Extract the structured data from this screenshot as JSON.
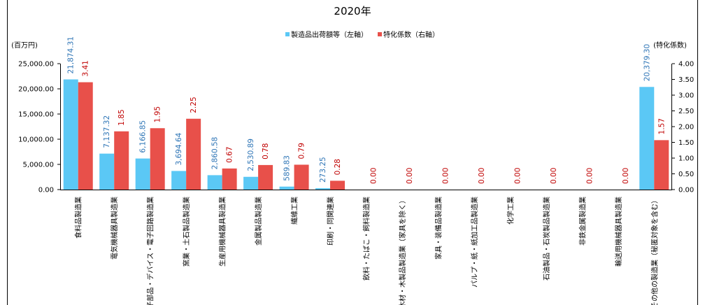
{
  "chart_data": {
    "type": "bar",
    "title": "2020年",
    "y_left_label": "(百万円)",
    "y_right_label": "(特化係数)",
    "y_left_range": [
      0,
      25000
    ],
    "y_right_range": [
      0,
      4
    ],
    "y_left_ticks": [
      "0.00",
      "5,000.00",
      "10,000.00",
      "15,000.00",
      "20,000.00",
      "25,000.00"
    ],
    "y_right_ticks": [
      "0.00",
      "0.50",
      "1.00",
      "1.50",
      "2.00",
      "2.50",
      "3.00",
      "3.50",
      "4.00"
    ],
    "legend_position": "top-center",
    "categories": [
      "食料品製造業",
      "電気機械器具製造業",
      "電子部品・デバイス・電子回路製造業",
      "窯業・土石製品製造業",
      "生産用機械器具製造業",
      "金属製品製造業",
      "繊維工業",
      "印刷・同関連業",
      "飲料・たばこ・飼料製造業",
      "木材・木製品製造業（家具を除く）",
      "家具・装備品製造業",
      "パルプ・紙・紙加工品製造業",
      "化学工業",
      "石油製品・石炭製品製造業",
      "非鉄金属製造業",
      "輸送用機械器具製造業",
      "その他の製造業（秘匿対象を含む）"
    ],
    "series": [
      {
        "name": "製造品出荷額等（左軸）",
        "axis": "left",
        "color": "#5bc8f5",
        "values": [
          21874.31,
          7137.32,
          6166.85,
          3694.64,
          2860.58,
          2530.89,
          589.83,
          273.25,
          null,
          null,
          null,
          null,
          null,
          null,
          null,
          null,
          20379.3
        ],
        "labels": [
          "21,874.31",
          "7,137.32",
          "6,166.85",
          "3,694.64",
          "2,860.58",
          "2,530.89",
          "589.83",
          "273.25",
          "",
          "",
          "",
          "",
          "",
          "",
          "",
          "",
          "20,379.30"
        ],
        "label_color": "#2e75b6"
      },
      {
        "name": "特化係数（右軸）",
        "axis": "right",
        "color": "#e8504a",
        "values": [
          3.41,
          1.85,
          1.95,
          2.25,
          0.67,
          0.78,
          0.79,
          0.28,
          0,
          0,
          0,
          0,
          0,
          0,
          0,
          0,
          1.57
        ],
        "labels": [
          "3.41",
          "1.85",
          "1.95",
          "2.25",
          "0.67",
          "0.78",
          "0.79",
          "0.28",
          "0.00",
          "0.00",
          "0.00",
          "0.00",
          "0.00",
          "0.00",
          "0.00",
          "0.00",
          "1.57"
        ],
        "label_color": "#c00000"
      }
    ]
  }
}
